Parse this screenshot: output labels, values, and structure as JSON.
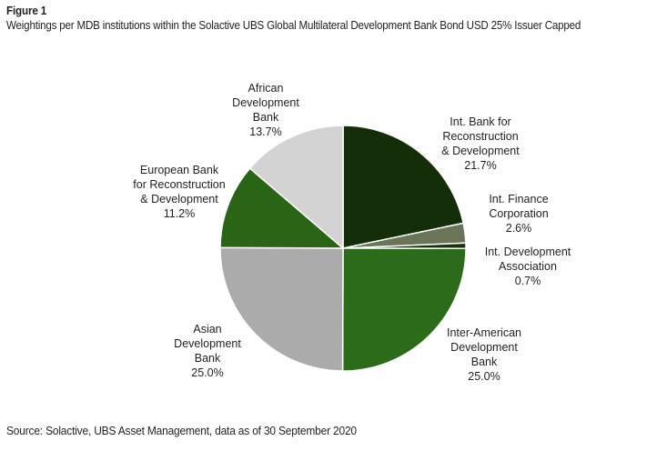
{
  "figure": {
    "label": "Figure 1",
    "title": "Weightings per MDB institutions within the Solactive UBS Global Multilateral Development Bank Bond USD 25% Issuer Capped",
    "source": "Source: Solactive, UBS Asset Management, data as of 30 September 2020"
  },
  "chart_data": {
    "type": "pie",
    "title": "Weightings per MDB institutions within the Solactive UBS Global Multilateral Development Bank Bond USD 25% Issuer Capped",
    "start_angle_deg": 0,
    "direction": "clockwise",
    "slices": [
      {
        "name": "Int. Bank for Reconstruction & Development",
        "label_lines": [
          "Int. Bank for",
          "Reconstruction",
          "& Development"
        ],
        "value": 21.7,
        "value_label": "21.7%",
        "color": "#142e0a"
      },
      {
        "name": "Int. Finance Corporation",
        "label_lines": [
          "Int. Finance",
          "Corporation"
        ],
        "value": 2.6,
        "value_label": "2.6%",
        "color": "#6a7558"
      },
      {
        "name": "Int. Development Association",
        "label_lines": [
          "Int. Development",
          "Association"
        ],
        "value": 0.7,
        "value_label": "0.7%",
        "color": "#173112"
      },
      {
        "name": "Inter-American Development Bank",
        "label_lines": [
          "Inter-American",
          "Development",
          "Bank"
        ],
        "value": 25.0,
        "value_label": "25.0%",
        "color": "#2c6b1a"
      },
      {
        "name": "Asian Development Bank",
        "label_lines": [
          "Asian",
          "Development",
          "Bank"
        ],
        "value": 25.0,
        "value_label": "25.0%",
        "color": "#ababab"
      },
      {
        "name": "European Bank for Reconstruction & Development",
        "label_lines": [
          "European Bank",
          "for Reconstruction",
          "& Development"
        ],
        "value": 11.2,
        "value_label": "11.2%",
        "color": "#2a6415"
      },
      {
        "name": "African Development Bank",
        "label_lines": [
          "African",
          "Development",
          "Bank"
        ],
        "value": 13.7,
        "value_label": "13.7%",
        "color": "#d3d3d3"
      }
    ]
  }
}
